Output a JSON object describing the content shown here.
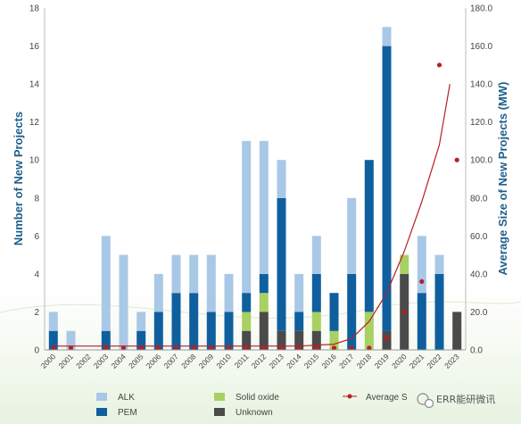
{
  "colors": {
    "alk": "#a9c8e6",
    "pem": "#0f5f9e",
    "solid_oxide": "#a8d062",
    "unknown": "#4a4a4a",
    "average": "#b52025",
    "axis_title": "#1f5f8b"
  },
  "chart_data": {
    "type": "bar",
    "stacked": true,
    "categories": [
      "2000",
      "2001",
      "2002",
      "2003",
      "2004",
      "2005",
      "2006",
      "2007",
      "2008",
      "2009",
      "2010",
      "2011",
      "2012",
      "2013",
      "2014",
      "2015",
      "2016",
      "2017",
      "2018",
      "2019",
      "2020",
      "2021",
      "2022",
      "2023"
    ],
    "series": [
      {
        "name": "Unknown",
        "values": [
          0,
          0,
          0,
          0,
          0,
          0,
          0,
          0,
          0,
          0,
          0,
          1,
          2,
          1,
          1,
          1,
          0,
          0,
          0,
          1,
          4,
          0,
          0,
          2
        ]
      },
      {
        "name": "Solid oxide",
        "values": [
          0,
          0,
          0,
          0,
          0,
          0,
          0,
          0,
          0,
          0,
          0,
          1,
          1,
          0,
          0,
          1,
          1,
          0,
          2,
          0,
          1,
          0,
          0,
          0
        ]
      },
      {
        "name": "PEM",
        "values": [
          1,
          0,
          0,
          1,
          0,
          1,
          2,
          3,
          3,
          2,
          2,
          1,
          1,
          7,
          1,
          2,
          2,
          4,
          8,
          15,
          0,
          3,
          4,
          0
        ]
      },
      {
        "name": "ALK",
        "values": [
          1,
          1,
          0,
          5,
          5,
          1,
          2,
          2,
          2,
          3,
          2,
          8,
          7,
          2,
          2,
          2,
          0,
          4,
          0,
          1,
          0,
          3,
          1,
          0
        ]
      }
    ],
    "average_size": {
      "name": "Average Size",
      "values": [
        1,
        1,
        null,
        1,
        1,
        1,
        1,
        1,
        1,
        1,
        1,
        1,
        1,
        1,
        1,
        1,
        1,
        1,
        1,
        6,
        20,
        36,
        150,
        100
      ]
    },
    "trend_line": {
      "x": [
        2000,
        2005,
        2010,
        2014,
        2016,
        2017,
        2018,
        2019,
        2020,
        2021,
        2022,
        2022.6
      ],
      "y": [
        2,
        2,
        2,
        2,
        3,
        6,
        15,
        30,
        52,
        78,
        108,
        140
      ]
    },
    "ylabel": "Number of New Projects",
    "y2label": "Average Size of New Projects (MW)",
    "ylim": [
      0,
      18
    ],
    "y_ticks": [
      "0",
      "2",
      "4",
      "6",
      "8",
      "10",
      "12",
      "14",
      "16",
      "18"
    ],
    "y2lim": [
      0,
      180
    ],
    "y2_ticks": [
      "0.0",
      "20.0",
      "40.0",
      "60.0",
      "80.0",
      "100.0",
      "120.0",
      "140.0",
      "160.0",
      "180.0"
    ],
    "grid": false
  },
  "legend": {
    "alk": "ALK",
    "pem": "PEM",
    "solid_oxide": "Solid oxide",
    "unknown": "Unknown",
    "average": "Average S"
  },
  "watermark": "ERR能研微讯"
}
